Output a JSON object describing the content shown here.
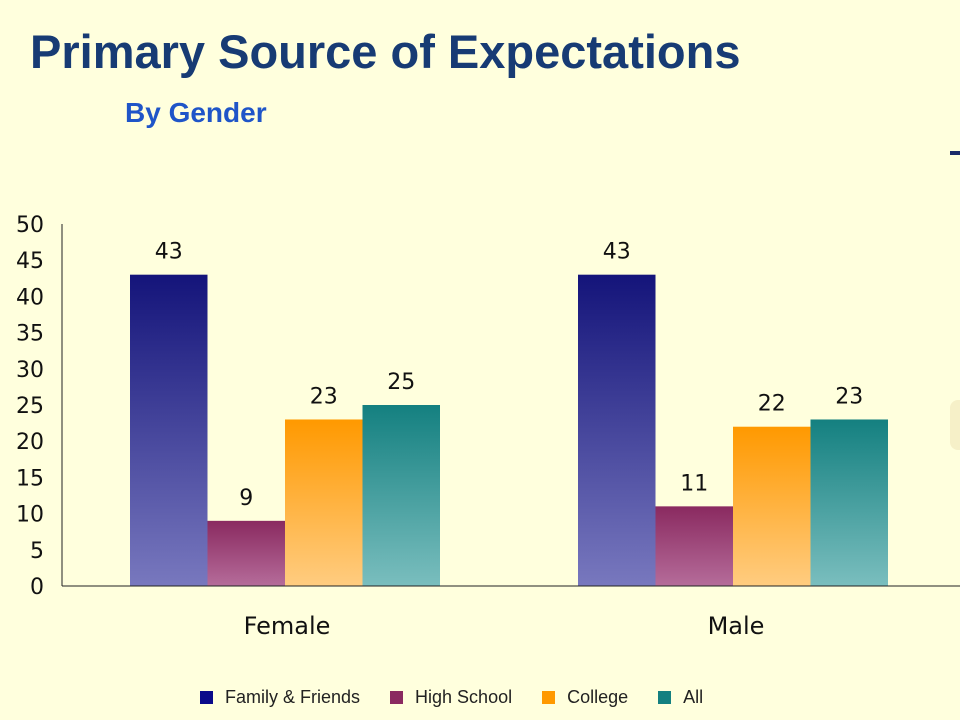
{
  "chart_data": {
    "type": "bar",
    "title": "Primary Source of Expectations",
    "subtitle": "By Gender",
    "categories": [
      "Female",
      "Male"
    ],
    "series": [
      {
        "name": "Family & Friends",
        "values": [
          43,
          43
        ],
        "data_labels": [
          "43",
          "43"
        ],
        "color_top": "#14147A",
        "color_bottom": "#7878BE"
      },
      {
        "name": "High School",
        "values": [
          9,
          11
        ],
        "data_labels": [
          "9",
          "11"
        ],
        "color_top": "#8A2A60",
        "color_bottom": "#B56C9A"
      },
      {
        "name": "College",
        "values": [
          23,
          22
        ],
        "data_labels": [
          "23",
          "22"
        ],
        "color_top": "#FF9900",
        "color_bottom": "#FFCC80"
      },
      {
        "name": "All",
        "values": [
          25,
          23
        ],
        "data_labels": [
          "25",
          "23"
        ],
        "color_top": "#148080",
        "color_bottom": "#7ABEBE"
      }
    ],
    "ylim": [
      0,
      50
    ],
    "yticks": [
      "0",
      "5",
      "10",
      "15",
      "20",
      "25",
      "30",
      "35",
      "40",
      "45",
      "50"
    ],
    "xlabel": "",
    "ylabel": "",
    "legend_position": "bottom",
    "grid": false
  },
  "legend_colors": [
    "#0A0A8A",
    "#8A2A60",
    "#FF9900",
    "#148080"
  ]
}
